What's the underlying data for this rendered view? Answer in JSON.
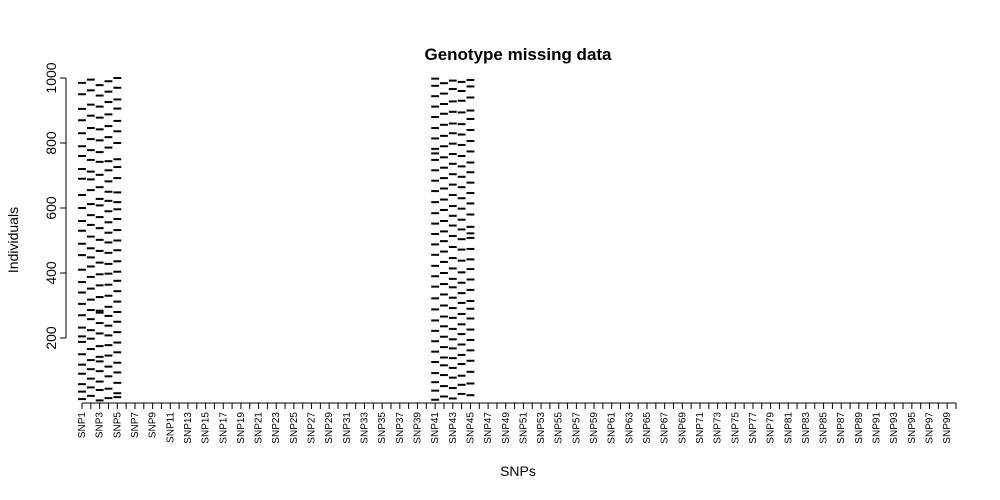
{
  "chart_data": {
    "type": "missing-map",
    "title": "Genotype missing data",
    "x_label": "SNPs",
    "y_label": "Individuals",
    "color": "#000000",
    "categories": [
      "SNP1",
      null,
      "SNP3",
      null,
      "SNP5",
      null,
      "SNP7",
      null,
      "SNP9",
      null,
      "SNP11",
      null,
      "SNP13",
      null,
      "SNP15",
      null,
      "SNP17",
      null,
      "SNP19",
      null,
      "SNP21",
      null,
      "SNP23",
      null,
      "SNP25",
      null,
      "SNP27",
      null,
      "SNP29",
      null,
      "SNP31",
      null,
      "SNP33",
      null,
      "SNP35",
      null,
      "SNP37",
      null,
      "SNP39",
      null,
      "SNP41",
      null,
      "SNP43",
      null,
      "SNP45",
      null,
      "SNP47",
      null,
      "SNP49",
      null,
      "SNP51",
      null,
      "SNP53",
      null,
      "SNP55",
      null,
      "SNP57",
      null,
      "SNP59",
      null,
      "SNP61",
      null,
      "SNP63",
      null,
      "SNP65",
      null,
      "SNP67",
      null,
      "SNP69",
      null,
      "SNP71",
      null,
      "SNP73",
      null,
      "SNP75",
      null,
      "SNP77",
      null,
      "SNP79",
      null,
      "SNP81",
      null,
      "SNP83",
      null,
      "SNP85",
      null,
      "SNP87",
      null,
      "SNP89",
      null,
      "SNP91",
      null,
      "SNP93",
      null,
      "SNP95",
      null,
      "SNP97",
      null,
      "SNP99",
      null
    ],
    "values": [
      [
        12,
        35,
        58,
        90,
        118,
        150,
        188,
        205,
        232,
        270,
        305,
        340,
        372,
        410,
        455,
        490,
        530,
        560,
        600,
        640,
        690,
        720,
        760,
        790,
        830,
        870,
        905,
        950,
        985
      ],
      [
        22,
        48,
        75,
        104,
        132,
        166,
        198,
        224,
        258,
        286,
        318,
        352,
        388,
        420,
        448,
        476,
        512,
        548,
        578,
        612,
        655,
        688,
        712,
        748,
        778,
        812,
        846,
        884,
        918,
        962,
        995
      ],
      [
        8,
        40,
        66,
        98,
        128,
        142,
        175,
        214,
        246,
        278,
        284,
        326,
        362,
        396,
        432,
        468,
        502,
        538,
        572,
        608,
        628,
        664,
        702,
        742,
        772,
        808,
        842,
        878,
        912,
        946,
        978
      ],
      [
        15,
        44,
        82,
        112,
        146,
        178,
        208,
        238,
        268,
        296,
        330,
        364,
        398,
        428,
        462,
        494,
        524,
        556,
        590,
        622,
        650,
        682,
        716,
        744,
        786,
        818,
        852,
        888,
        926,
        958,
        990
      ],
      [
        18,
        30,
        62,
        94,
        124,
        156,
        186,
        218,
        250,
        280,
        312,
        344,
        376,
        404,
        436,
        470,
        500,
        532,
        566,
        596,
        618,
        648,
        692,
        726,
        750,
        800,
        836,
        868,
        906,
        934,
        970,
        1000
      ],
      [],
      [],
      [],
      [],
      [],
      [],
      [],
      [],
      [],
      [],
      [],
      [],
      [],
      [],
      [],
      [],
      [],
      [],
      [],
      [],
      [],
      [],
      [],
      [],
      [],
      [],
      [],
      [],
      [],
      [],
      [],
      [],
      [],
      [],
      [],
      [
        10,
        38,
        64,
        92,
        126,
        158,
        190,
        222,
        254,
        288,
        322,
        358,
        390,
        422,
        456,
        488,
        520,
        552,
        584,
        618,
        652,
        684,
        716,
        748,
        768,
        782,
        814,
        846,
        880,
        912,
        944,
        976,
        998
      ],
      [
        20,
        52,
        86,
        116,
        140,
        172,
        204,
        236,
        266,
        300,
        334,
        366,
        400,
        434,
        466,
        498,
        528,
        560,
        594,
        626,
        660,
        692,
        724,
        756,
        790,
        822,
        856,
        890,
        920,
        952,
        984
      ],
      [
        14,
        46,
        78,
        108,
        138,
        168,
        196,
        228,
        262,
        292,
        324,
        356,
        382,
        414,
        446,
        480,
        514,
        546,
        576,
        606,
        640,
        672,
        704,
        736,
        766,
        798,
        830,
        860,
        896,
        928,
        966,
        992
      ],
      [
        28,
        56,
        84,
        120,
        148,
        180,
        212,
        242,
        274,
        308,
        338,
        370,
        402,
        438,
        472,
        504,
        534,
        564,
        598,
        630,
        664,
        696,
        728,
        760,
        794,
        826,
        858,
        894,
        930,
        960,
        988
      ],
      [
        24,
        60,
        96,
        130,
        162,
        194,
        226,
        260,
        290,
        314,
        348,
        380,
        412,
        442,
        474,
        508,
        522,
        542,
        580,
        614,
        646,
        678,
        710,
        740,
        774,
        806,
        840,
        874,
        900,
        940,
        974,
        994
      ],
      [],
      [],
      [],
      [],
      [],
      [],
      [],
      [],
      [],
      [],
      [],
      [],
      [],
      [],
      [],
      [],
      [],
      [],
      [],
      [],
      [],
      [],
      [],
      [],
      [],
      [],
      [],
      [],
      [],
      [],
      [],
      [],
      [],
      [],
      [],
      [],
      [],
      [],
      [],
      [],
      [],
      [],
      [],
      [],
      [],
      [],
      [],
      [],
      [],
      [],
      [],
      [],
      [],
      [],
      []
    ],
    "ylim": [
      0,
      1000
    ],
    "yticks": [
      200,
      400,
      600,
      800,
      1000
    ]
  }
}
